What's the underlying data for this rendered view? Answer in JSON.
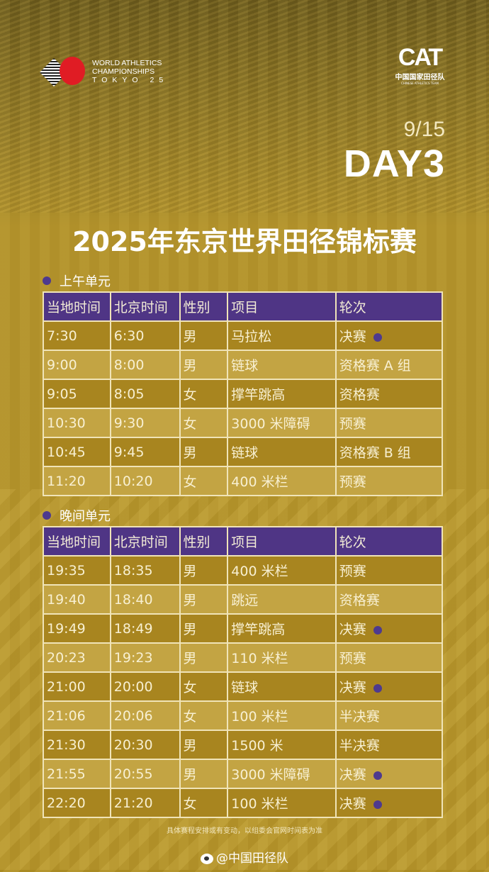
{
  "logos": {
    "wa_line1": "WORLD ATHLETICS",
    "wa_line2": "CHAMPIONSHIPS",
    "wa_line3": "TOKYO 25",
    "cat": "CAT",
    "cat_cn": "中国国家田径队",
    "cat_en": "CHINESE ATHLETICS TEAM"
  },
  "date": "9/15",
  "day": "DAY3",
  "title": "2025年东京世界田径锦标赛",
  "headers": [
    "当地时间",
    "北京时间",
    "性别",
    "项目",
    "轮次"
  ],
  "morning": {
    "label": "上午单元",
    "rows": [
      {
        "local": "7:30",
        "beijing": "6:30",
        "gender": "男",
        "event": "马拉松",
        "round": "决赛",
        "final": true
      },
      {
        "local": "9:00",
        "beijing": "8:00",
        "gender": "男",
        "event": "链球",
        "round": "资格赛 A 组",
        "final": false
      },
      {
        "local": "9:05",
        "beijing": "8:05",
        "gender": "女",
        "event": "撑竿跳高",
        "round": "资格赛",
        "final": false
      },
      {
        "local": "10:30",
        "beijing": "9:30",
        "gender": "女",
        "event": "3000 米障碍",
        "round": "预赛",
        "final": false
      },
      {
        "local": "10:45",
        "beijing": "9:45",
        "gender": "男",
        "event": "链球",
        "round": "资格赛 B 组",
        "final": false
      },
      {
        "local": "11:20",
        "beijing": "10:20",
        "gender": "女",
        "event": "400 米栏",
        "round": "预赛",
        "final": false
      }
    ]
  },
  "evening": {
    "label": "晚间单元",
    "rows": [
      {
        "local": "19:35",
        "beijing": "18:35",
        "gender": "男",
        "event": "400 米栏",
        "round": "预赛",
        "final": false
      },
      {
        "local": "19:40",
        "beijing": "18:40",
        "gender": "男",
        "event": "跳远",
        "round": "资格赛",
        "final": false
      },
      {
        "local": "19:49",
        "beijing": "18:49",
        "gender": "男",
        "event": "撑竿跳高",
        "round": "决赛",
        "final": true
      },
      {
        "local": "20:23",
        "beijing": "19:23",
        "gender": "男",
        "event": "110 米栏",
        "round": "预赛",
        "final": false
      },
      {
        "local": "21:00",
        "beijing": "20:00",
        "gender": "女",
        "event": "链球",
        "round": "决赛",
        "final": true
      },
      {
        "local": "21:06",
        "beijing": "20:06",
        "gender": "女",
        "event": "100 米栏",
        "round": "半决赛",
        "final": false
      },
      {
        "local": "21:30",
        "beijing": "20:30",
        "gender": "男",
        "event": "1500 米",
        "round": "半决赛",
        "final": false
      },
      {
        "local": "21:55",
        "beijing": "20:55",
        "gender": "男",
        "event": "3000 米障碍",
        "round": "决赛",
        "final": true
      },
      {
        "local": "22:20",
        "beijing": "21:20",
        "gender": "女",
        "event": "100 米栏",
        "round": "决赛",
        "final": true
      }
    ]
  },
  "note": "具体赛程安排或有变动，以组委会官网时间表为准",
  "weibo": "@中国田径队",
  "colors": {
    "header": "#4f3585",
    "row_dark": "#a8851f",
    "row_light": "#c3a443",
    "marker": "#4e3a8e"
  }
}
